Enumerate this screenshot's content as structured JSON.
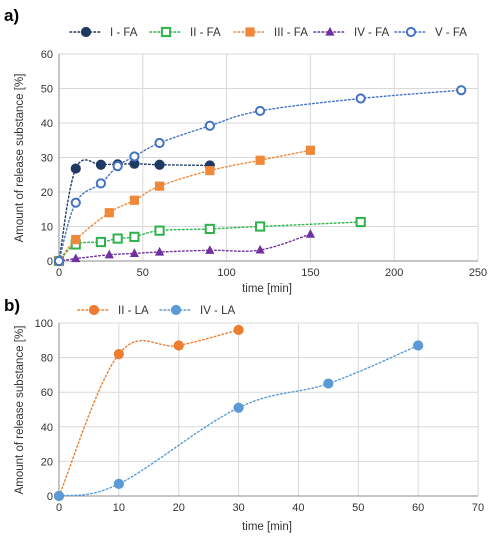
{
  "chart_data": [
    {
      "type": "scatter",
      "panel_label": "a)",
      "xlabel": "time [min]",
      "ylabel": "Amount of release substance [%]",
      "xlim": [
        0,
        250
      ],
      "ylim": [
        0,
        60
      ],
      "xticks": [
        0,
        50,
        100,
        150,
        200,
        250
      ],
      "yticks": [
        0,
        10,
        20,
        30,
        40,
        50,
        60
      ],
      "grid": true,
      "legend_position": "top",
      "series": [
        {
          "name": "I - FA",
          "color": "#1f3864",
          "marker": "circle-filled",
          "x": [
            0,
            10,
            25,
            35,
            45,
            60,
            90
          ],
          "y": [
            0,
            26.8,
            27.9,
            28.0,
            28.2,
            27.9,
            27.7
          ]
        },
        {
          "name": "II - FA",
          "color": "#2eb24c",
          "marker": "square-open",
          "x": [
            0,
            10,
            25,
            35,
            45,
            60,
            90,
            120,
            180
          ],
          "y": [
            0,
            4.8,
            5.5,
            6.5,
            7.0,
            8.8,
            9.3,
            10.0,
            11.3
          ]
        },
        {
          "name": "III - FA",
          "color": "#f0883a",
          "marker": "square-filled",
          "x": [
            0,
            10,
            30,
            45,
            60,
            90,
            120,
            150
          ],
          "y": [
            0,
            6.2,
            14.0,
            17.6,
            21.7,
            26.2,
            29.2,
            32.1
          ]
        },
        {
          "name": "IV - FA",
          "color": "#7030a0",
          "marker": "triangle-filled",
          "x": [
            0,
            10,
            30,
            45,
            60,
            90,
            120,
            150
          ],
          "y": [
            0,
            0.7,
            1.8,
            2.2,
            2.6,
            3.1,
            3.2,
            7.8
          ]
        },
        {
          "name": "V - FA",
          "color": "#4472c4",
          "marker": "circle-open",
          "x": [
            0,
            10,
            25,
            35,
            45,
            60,
            90,
            120,
            180,
            240
          ],
          "y": [
            0,
            16.9,
            22.5,
            27.5,
            30.3,
            34.2,
            39.2,
            43.5,
            47.1,
            49.5
          ]
        }
      ]
    },
    {
      "type": "scatter",
      "panel_label": "b)",
      "xlabel": "time [min]",
      "ylabel": "Amount of release substance [%]",
      "xlim": [
        0,
        70
      ],
      "ylim": [
        0,
        100
      ],
      "xticks": [
        0,
        10,
        20,
        30,
        40,
        50,
        60,
        70
      ],
      "yticks": [
        0,
        20,
        40,
        60,
        80,
        100
      ],
      "grid": true,
      "legend_position": "top",
      "series": [
        {
          "name": "II - LA",
          "color": "#ed7d31",
          "marker": "circle-filled",
          "x": [
            0,
            10,
            20,
            30
          ],
          "y": [
            0,
            82,
            87,
            96
          ]
        },
        {
          "name": "IV - LA",
          "color": "#5b9bd5",
          "marker": "circle-filled",
          "x": [
            0,
            10,
            30,
            45,
            60
          ],
          "y": [
            0,
            7,
            51,
            65,
            87
          ]
        }
      ]
    }
  ]
}
